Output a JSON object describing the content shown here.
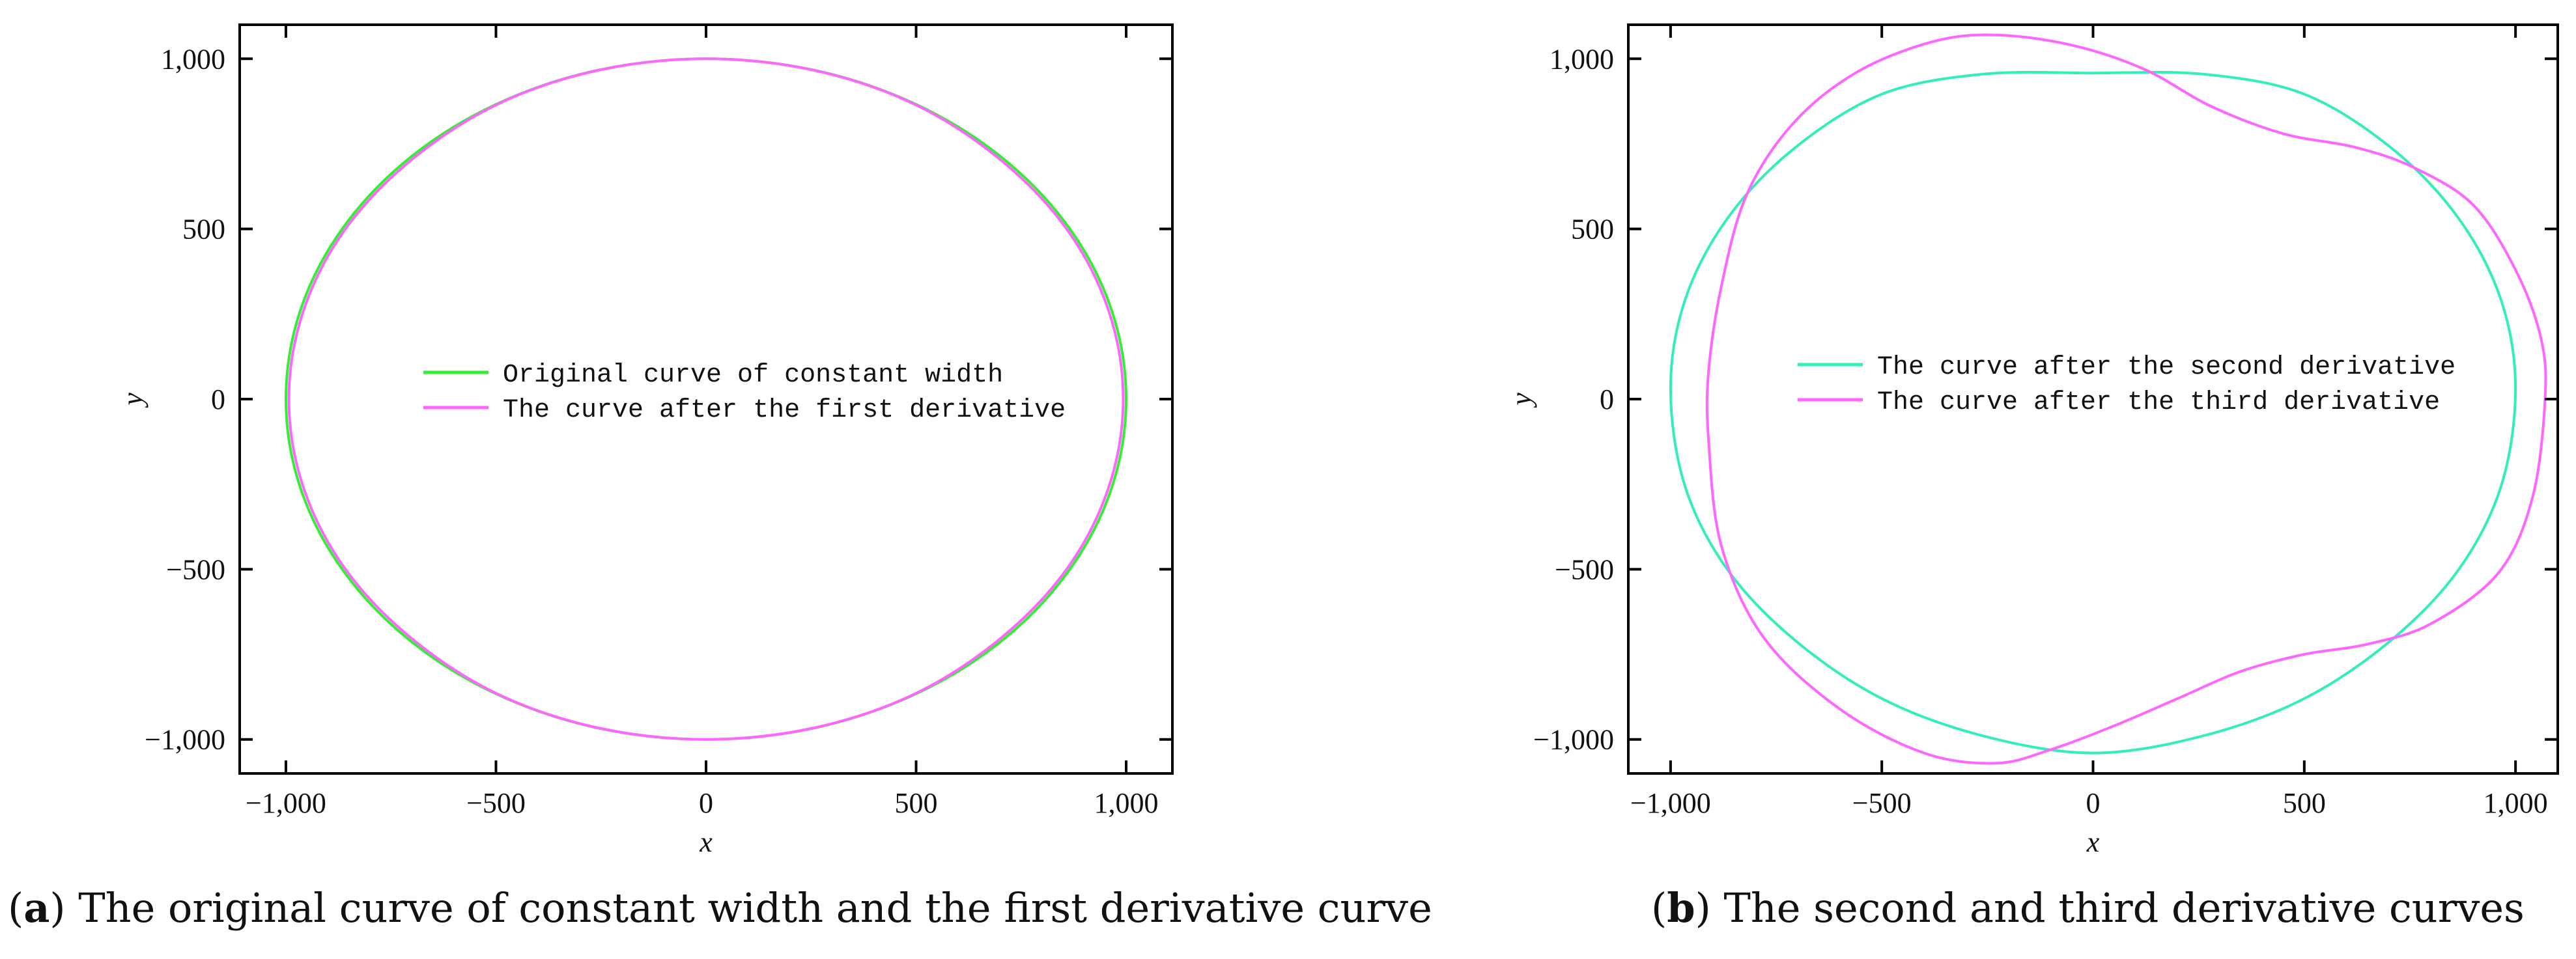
{
  "figure": {
    "caption_a": {
      "prefix": "(",
      "letter": "a",
      "text": ") The original curve of constant width and the first derivative curve"
    },
    "caption_b": {
      "prefix": "(",
      "letter": "b",
      "text": ") The second and third derivative curves"
    }
  },
  "chart_data": [
    {
      "id": "a",
      "type": "line",
      "xlabel": "x",
      "ylabel": "y",
      "xlim": [
        -1110,
        1110
      ],
      "ylim": [
        -1100,
        1100
      ],
      "xticks": [
        -1000,
        -500,
        0,
        500,
        1000
      ],
      "xtick_labels": [
        "−1,000",
        "−500",
        "0",
        "500",
        "1,000"
      ],
      "yticks": [
        -1000,
        -500,
        0,
        500,
        1000
      ],
      "ytick_labels": [
        "−1,000",
        "−500",
        "0",
        "500",
        "1,000"
      ],
      "legend_position": "center",
      "series": [
        {
          "name": "Original curve of constant width",
          "color": "#33ee33",
          "shape": "closed-curve",
          "points": [
            [
              1000,
              0
            ],
            [
              966,
              259
            ],
            [
              866,
              500
            ],
            [
              707,
              707
            ],
            [
              500,
              866
            ],
            [
              259,
              966
            ],
            [
              0,
              1000
            ],
            [
              -259,
              966
            ],
            [
              -500,
              866
            ],
            [
              -707,
              707
            ],
            [
              -866,
              500
            ],
            [
              -966,
              259
            ],
            [
              -1000,
              0
            ],
            [
              -966,
              -259
            ],
            [
              -866,
              -500
            ],
            [
              -707,
              -707
            ],
            [
              -500,
              -866
            ],
            [
              -259,
              -966
            ],
            [
              0,
              -1000
            ],
            [
              259,
              -966
            ],
            [
              500,
              -866
            ],
            [
              707,
              -707
            ],
            [
              866,
              -500
            ],
            [
              966,
              -259
            ]
          ]
        },
        {
          "name": "The curve after the first derivative",
          "color": "#ff66ff",
          "shape": "closed-curve",
          "points": [
            [
              993,
              0
            ],
            [
              959,
              257
            ],
            [
              860,
              497
            ],
            [
              702,
              702
            ],
            [
              497,
              866
            ],
            [
              257,
              966
            ],
            [
              0,
              1000
            ],
            [
              -257,
              966
            ],
            [
              -497,
              866
            ],
            [
              -702,
              702
            ],
            [
              -860,
              497
            ],
            [
              -959,
              257
            ],
            [
              -993,
              0
            ],
            [
              -959,
              -257
            ],
            [
              -860,
              -497
            ],
            [
              -702,
              -702
            ],
            [
              -497,
              -866
            ],
            [
              -257,
              -966
            ],
            [
              0,
              -1000
            ],
            [
              257,
              -966
            ],
            [
              497,
              -866
            ],
            [
              702,
              -702
            ],
            [
              860,
              -497
            ],
            [
              959,
              -257
            ]
          ]
        }
      ]
    },
    {
      "id": "b",
      "type": "line",
      "xlabel": "x",
      "ylabel": "y",
      "xlim": [
        -1100,
        1100
      ],
      "ylim": [
        -1100,
        1100
      ],
      "xticks": [
        -1000,
        -500,
        0,
        500,
        1000
      ],
      "xtick_labels": [
        "−1,000",
        "−500",
        "0",
        "500",
        "1,000"
      ],
      "yticks": [
        -1000,
        -500,
        0,
        500,
        1000
      ],
      "ytick_labels": [
        "−1,000",
        "−500",
        "0",
        "500",
        "1,000"
      ],
      "legend_position": "center",
      "series": [
        {
          "name": "The curve after the second derivative",
          "color": "#33eebb",
          "shape": "closed-curve",
          "points": [
            [
              1000,
              30
            ],
            [
              966,
              290
            ],
            [
              866,
              530
            ],
            [
              707,
              737
            ],
            [
              500,
              896
            ],
            [
              259,
              955
            ],
            [
              0,
              958
            ],
            [
              -259,
              955
            ],
            [
              -500,
              896
            ],
            [
              -707,
              737
            ],
            [
              -866,
              530
            ],
            [
              -966,
              290
            ],
            [
              -1000,
              30
            ],
            [
              -966,
              -255
            ],
            [
              -866,
              -500
            ],
            [
              -707,
              -707
            ],
            [
              -500,
              -880
            ],
            [
              -259,
              -990
            ],
            [
              0,
              -1040
            ],
            [
              259,
              -990
            ],
            [
              500,
              -880
            ],
            [
              707,
              -707
            ],
            [
              866,
              -500
            ],
            [
              966,
              -255
            ]
          ]
        },
        {
          "name": "The curve after the third derivative",
          "color": "#ff66ff",
          "shape": "closed-curve",
          "points": [
            [
              1070,
              0
            ],
            [
              1040,
              -290
            ],
            [
              960,
              -510
            ],
            [
              800,
              -660
            ],
            [
              650,
              -720
            ],
            [
              500,
              -750
            ],
            [
              350,
              -800
            ],
            [
              200,
              -880
            ],
            [
              50,
              -960
            ],
            [
              -100,
              -1030
            ],
            [
              -230,
              -1070
            ],
            [
              -400,
              -1040
            ],
            [
              -600,
              -910
            ],
            [
              -780,
              -700
            ],
            [
              -880,
              -430
            ],
            [
              -910,
              -120
            ],
            [
              -910,
              80
            ],
            [
              -880,
              330
            ],
            [
              -820,
              600
            ],
            [
              -710,
              810
            ],
            [
              -560,
              960
            ],
            [
              -380,
              1050
            ],
            [
              -230,
              1070
            ],
            [
              -50,
              1040
            ],
            [
              120,
              970
            ],
            [
              280,
              860
            ],
            [
              450,
              780
            ],
            [
              620,
              740
            ],
            [
              760,
              680
            ],
            [
              900,
              570
            ],
            [
              1000,
              380
            ],
            [
              1060,
              180
            ]
          ]
        }
      ]
    }
  ]
}
